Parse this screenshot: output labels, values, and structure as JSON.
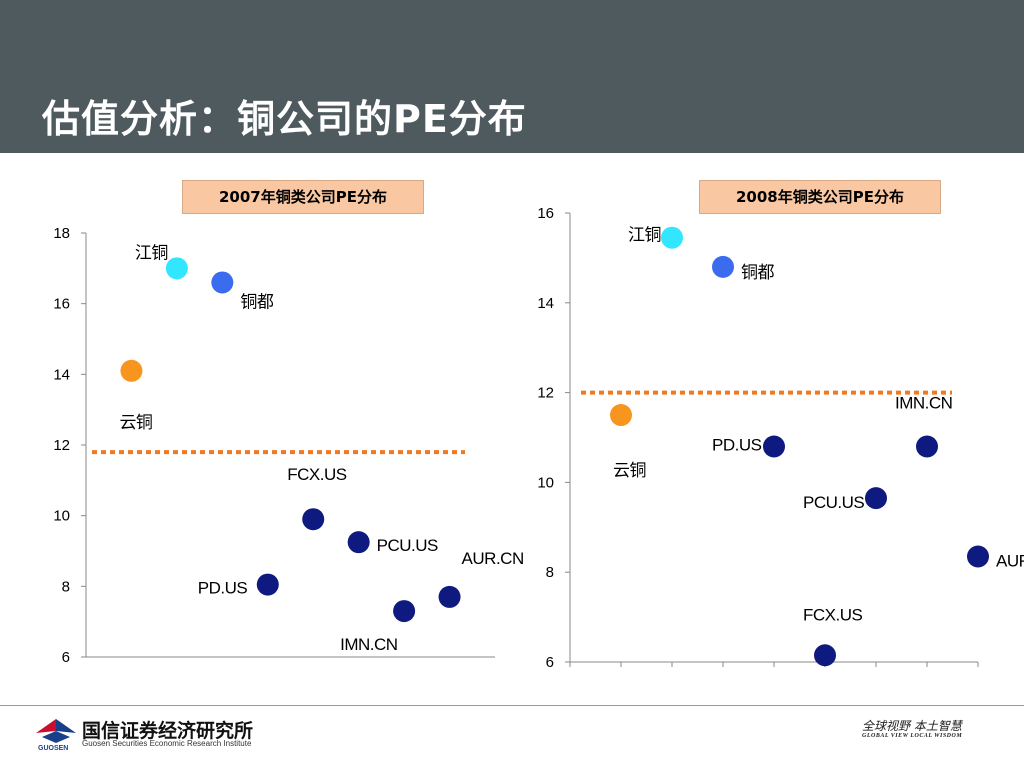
{
  "slide": {
    "title": "估值分析：铜公司的PE分布"
  },
  "chart_data": [
    {
      "type": "scatter",
      "title": "2007年铜类公司PE分布",
      "xlabel": "",
      "ylabel": "",
      "ylim": [
        6,
        18
      ],
      "yticks": [
        6,
        8,
        10,
        12,
        14,
        16,
        18
      ],
      "reference_line": {
        "y": 11.8,
        "style": "dotted",
        "color": "#f07a22"
      },
      "points": [
        {
          "label": "江铜",
          "x": 2,
          "y": 17.0,
          "color": "#33e6ff"
        },
        {
          "label": "铜都",
          "x": 3,
          "y": 16.6,
          "color": "#3b6cf0"
        },
        {
          "label": "云铜",
          "x": 1,
          "y": 14.1,
          "color": "#f7951e"
        },
        {
          "label": "FCX.US",
          "x": 5,
          "y": 9.9,
          "color": "#0f1a80"
        },
        {
          "label": "PCU.US",
          "x": 6,
          "y": 9.25,
          "color": "#0f1a80"
        },
        {
          "label": "AUR.CN",
          "x": 8,
          "y": 7.7,
          "color": "#0f1a80"
        },
        {
          "label": "PD.US",
          "x": 4,
          "y": 8.05,
          "color": "#0f1a80"
        },
        {
          "label": "IMN.CN",
          "x": 7,
          "y": 7.3,
          "color": "#0f1a80"
        }
      ]
    },
    {
      "type": "scatter",
      "title": "2008年铜类公司PE分布",
      "xlabel": "",
      "ylabel": "",
      "ylim": [
        6,
        16
      ],
      "yticks": [
        6,
        8,
        10,
        12,
        14,
        16
      ],
      "reference_line": {
        "y": 12.0,
        "style": "dotted",
        "color": "#f07a22"
      },
      "points": [
        {
          "label": "江铜",
          "x": 2,
          "y": 15.45,
          "color": "#33e6ff"
        },
        {
          "label": "铜都",
          "x": 3,
          "y": 14.8,
          "color": "#3b6cf0"
        },
        {
          "label": "云铜",
          "x": 1,
          "y": 11.5,
          "color": "#f7951e"
        },
        {
          "label": "IMN.CN",
          "x": 7,
          "y": 10.8,
          "color": "#0f1a80"
        },
        {
          "label": "PD.US",
          "x": 4,
          "y": 10.8,
          "color": "#0f1a80"
        },
        {
          "label": "PCU.US",
          "x": 6,
          "y": 9.65,
          "color": "#0f1a80"
        },
        {
          "label": "AUR.CN",
          "x": 8,
          "y": 8.35,
          "color": "#0f1a80"
        },
        {
          "label": "FCX.US",
          "x": 5,
          "y": 6.15,
          "color": "#0f1a80"
        }
      ]
    }
  ],
  "footer": {
    "org_name": "国信证券经济研究所",
    "org_subtitle": "Guosen Securities Economic Research Institute",
    "logo_text": "GUOSEN",
    "slogan": "全球视野  本土智慧",
    "slogan_en": "GLOBAL VIEW   LOCAL WISDOM"
  }
}
